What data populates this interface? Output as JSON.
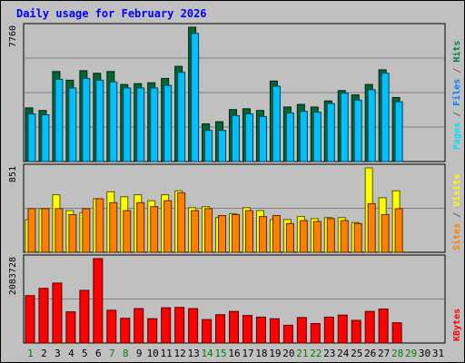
{
  "chart_data": {
    "type": "bar",
    "title": "Daily usage for February 2026",
    "x": [
      "1",
      "2",
      "3",
      "4",
      "5",
      "6",
      "7",
      "8",
      "9",
      "10",
      "11",
      "12",
      "13",
      "14",
      "15",
      "16",
      "17",
      "18",
      "19",
      "20",
      "21",
      "22",
      "23",
      "24",
      "25",
      "26",
      "27",
      "28",
      "29",
      "30",
      "31"
    ],
    "weekend_days": [
      "1",
      "7",
      "8",
      "14",
      "15",
      "21",
      "22",
      "28",
      "29"
    ],
    "panels": [
      {
        "id": "top",
        "max_label": "7760",
        "ylim": [
          0,
          7760
        ],
        "series": [
          {
            "name": "Hits",
            "color": "#006633",
            "values": [
              3100,
              2950,
              5200,
              4700,
              5250,
              5100,
              5200,
              4450,
              4500,
              4550,
              4800,
              5500,
              7760,
              2180,
              2300,
              3000,
              3050,
              2950,
              4650,
              3150,
              3300,
              3150,
              3500,
              4100,
              3850,
              4450,
              5300,
              3700,
              null,
              null,
              null
            ]
          },
          {
            "name": "Files",
            "color": "#00c0ff",
            "values": [
              2750,
              2700,
              4750,
              4250,
              4800,
              4700,
              4600,
              4250,
              4250,
              4250,
              4400,
              5150,
              7400,
              1800,
              1800,
              2650,
              2750,
              2600,
              4350,
              2800,
              2900,
              2850,
              3350,
              3950,
              3550,
              4150,
              5100,
              3450,
              null,
              null,
              null
            ]
          },
          {
            "name": "Pages",
            "color": "#00e0ff",
            "values": []
          }
        ]
      },
      {
        "id": "middle",
        "max_label": "851",
        "ylim": [
          0,
          851
        ],
        "series": [
          {
            "name": "Visits",
            "color": "#ffff00",
            "values": [
              330,
              440,
              580,
              420,
              400,
              540,
              610,
              560,
              580,
              520,
              580,
              620,
              450,
              460,
              350,
              390,
              450,
              420,
              330,
              330,
              360,
              340,
              350,
              350,
              300,
              851,
              550,
              620,
              null,
              null,
              null
            ]
          },
          {
            "name": "Sites",
            "color": "#ff8000",
            "values": [
              440,
              440,
              440,
              380,
              440,
              540,
              500,
              420,
              500,
              460,
              520,
              600,
              420,
              440,
              370,
              380,
              420,
              360,
              370,
              290,
              320,
              310,
              340,
              320,
              290,
              490,
              380,
              440,
              null,
              null,
              null
            ]
          }
        ]
      },
      {
        "id": "bottom",
        "max_label": "2083728",
        "ylim": [
          0,
          2083728
        ],
        "series": [
          {
            "name": "KBytes",
            "color": "#ff0000",
            "values": [
              1170000,
              1350000,
              1480000,
              770000,
              1300000,
              2083728,
              810000,
              610000,
              850000,
              600000,
              870000,
              880000,
              850000,
              580000,
              700000,
              780000,
              680000,
              640000,
              600000,
              440000,
              630000,
              480000,
              640000,
              690000,
              560000,
              780000,
              840000,
              500000,
              null,
              null,
              null
            ]
          }
        ]
      }
    ],
    "right_labels": {
      "top": [
        {
          "text": "Pages",
          "color": "#00e0ff"
        },
        {
          "text": " / ",
          "color": "#666666"
        },
        {
          "text": "Files",
          "color": "#0080ff"
        },
        {
          "text": " / ",
          "color": "#666666"
        },
        {
          "text": "Hits",
          "color": "#008040"
        }
      ],
      "middle": [
        {
          "text": "Sites",
          "color": "#ff8000"
        },
        {
          "text": " / ",
          "color": "#666666"
        },
        {
          "text": "Visits",
          "color": "#ffff00"
        }
      ],
      "bottom": [
        {
          "text": "KBytes",
          "color": "#ff0000"
        }
      ]
    },
    "grid": true,
    "colors": {
      "frame": "#c0c0c0",
      "plot_bg": "#c0c0c0",
      "title": "#0000ff",
      "weekday_label": "#000000",
      "weekend_label": "#008000",
      "grid_line": "#808080"
    }
  }
}
